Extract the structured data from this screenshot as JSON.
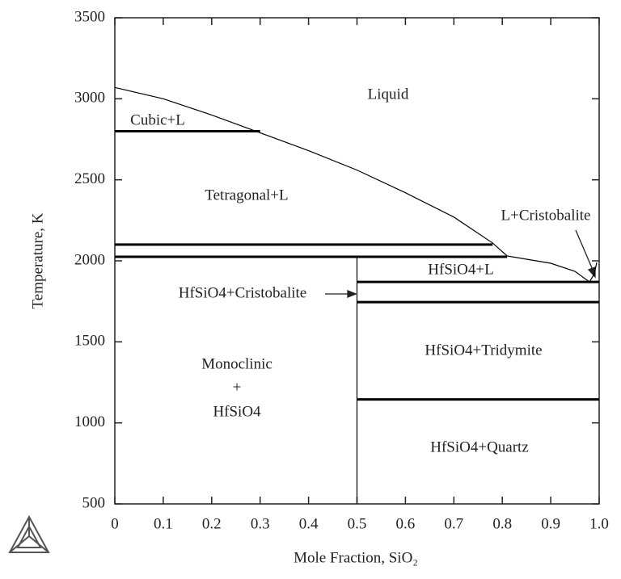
{
  "chart_data": {
    "type": "phase-diagram",
    "xlabel": "Mole Fraction, SiO₂",
    "ylabel": "Temperature, K",
    "xlim": [
      0,
      1
    ],
    "ylim": [
      500,
      3500
    ],
    "xticks": [
      0,
      0.1,
      0.2,
      0.3,
      0.4,
      0.5,
      0.6,
      0.7,
      0.8,
      0.9,
      {
        "value": 1,
        "label": "1.0"
      }
    ],
    "yticks": [
      500,
      1000,
      1500,
      2000,
      2500,
      3000,
      3500
    ],
    "color": "#000000",
    "series": [
      {
        "x": [
          0,
          0.1,
          0.2,
          0.3,
          0.4,
          0.5,
          0.6,
          0.7,
          0.78,
          0.81,
          0.85,
          0.9,
          0.95,
          0.98,
          0.99,
          0.995
        ],
        "values": [
          3070,
          3000,
          2900,
          2790,
          2680,
          2560,
          2420,
          2270,
          2110,
          2030,
          2010,
          1985,
          1935,
          1870,
          1920,
          1990
        ]
      },
      {
        "x": [
          0,
          0.3
        ],
        "values": [
          2800,
          2800
        ]
      },
      {
        "x": [
          0,
          0.78
        ],
        "values": [
          2100,
          2100
        ]
      },
      {
        "x": [
          0,
          0.81
        ],
        "values": [
          2025,
          2025
        ]
      },
      {
        "x": [
          0.5,
          0.5
        ],
        "values": [
          500,
          2025
        ]
      },
      {
        "x": [
          0.5,
          1
        ],
        "values": [
          1870,
          1870
        ]
      },
      {
        "x": [
          0.5,
          1
        ],
        "values": [
          1745,
          1745
        ]
      },
      {
        "x": [
          0.5,
          1
        ],
        "values": [
          1145,
          1145
        ]
      }
    ],
    "annotations": [
      "Liquid",
      "Cubic+L",
      "Tetragonal+L",
      "L+Cristobalite",
      "HfSiO4+L",
      "HfSiO4+Cristobalite",
      "HfSiO4+Tridymite",
      "Monoclinic",
      "+",
      "HfSiO4",
      "HfSiO4+Quartz"
    ]
  }
}
